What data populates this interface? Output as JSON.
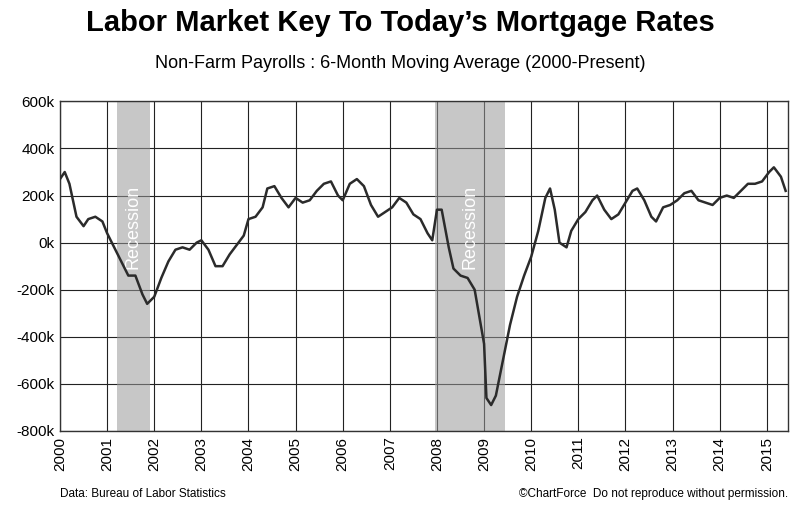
{
  "chart_data": {
    "type": "line",
    "title": "Labor Market Key To Today’s Mortgage Rates",
    "subtitle": "Non-Farm Payrolls : 6-Month Moving Average (2000-Present)",
    "source": "Data: Bureau of Labor Statistics",
    "credit": "©ChartForce  Do not reproduce without permission.",
    "x": [
      2000.0,
      2000.1,
      2000.2,
      2000.35,
      2000.5,
      2000.6,
      2000.75,
      2000.9,
      2001.0,
      2001.15,
      2001.3,
      2001.45,
      2001.6,
      2001.75,
      2001.85,
      2002.0,
      2002.15,
      2002.3,
      2002.45,
      2002.6,
      2002.75,
      2002.9,
      2003.0,
      2003.15,
      2003.3,
      2003.45,
      2003.6,
      2003.75,
      2003.9,
      2004.0,
      2004.15,
      2004.3,
      2004.4,
      2004.55,
      2004.7,
      2004.85,
      2005.0,
      2005.15,
      2005.3,
      2005.45,
      2005.6,
      2005.75,
      2005.9,
      2006.0,
      2006.15,
      2006.3,
      2006.45,
      2006.6,
      2006.75,
      2006.9,
      2007.05,
      2007.2,
      2007.35,
      2007.5,
      2007.65,
      2007.8,
      2007.9,
      2008.0,
      2008.1,
      2008.25,
      2008.35,
      2008.5,
      2008.65,
      2008.8,
      2009.0,
      2009.05,
      2009.15,
      2009.25,
      2009.4,
      2009.55,
      2009.7,
      2009.85,
      2010.0,
      2010.15,
      2010.3,
      2010.4,
      2010.5,
      2010.6,
      2010.75,
      2010.85,
      2011.0,
      2011.15,
      2011.3,
      2011.4,
      2011.55,
      2011.7,
      2011.85,
      2012.0,
      2012.15,
      2012.25,
      2012.4,
      2012.55,
      2012.65,
      2012.8,
      2012.95,
      2013.1,
      2013.25,
      2013.4,
      2013.55,
      2013.7,
      2013.85,
      2014.0,
      2014.15,
      2014.3,
      2014.45,
      2014.6,
      2014.75,
      2014.9,
      2015.05,
      2015.15,
      2015.3,
      2015.4
    ],
    "values": [
      270000,
      300000,
      250000,
      110000,
      70000,
      100000,
      110000,
      90000,
      40000,
      -20000,
      -80000,
      -140000,
      -140000,
      -220000,
      -260000,
      -230000,
      -150000,
      -80000,
      -30000,
      -20000,
      -30000,
      0,
      10000,
      -30000,
      -100000,
      -100000,
      -50000,
      -10000,
      30000,
      100000,
      110000,
      150000,
      230000,
      240000,
      190000,
      150000,
      190000,
      170000,
      180000,
      220000,
      250000,
      260000,
      200000,
      180000,
      250000,
      270000,
      240000,
      160000,
      110000,
      130000,
      150000,
      190000,
      170000,
      120000,
      100000,
      40000,
      10000,
      140000,
      140000,
      -20000,
      -110000,
      -140000,
      -150000,
      -200000,
      -430000,
      -660000,
      -690000,
      -650000,
      -500000,
      -350000,
      -230000,
      -140000,
      -60000,
      50000,
      190000,
      230000,
      140000,
      0,
      -20000,
      50000,
      100000,
      130000,
      180000,
      200000,
      140000,
      100000,
      120000,
      170000,
      220000,
      230000,
      180000,
      110000,
      90000,
      150000,
      160000,
      180000,
      210000,
      220000,
      180000,
      170000,
      160000,
      190000,
      200000,
      190000,
      220000,
      250000,
      250000,
      260000,
      300000,
      320000,
      280000,
      220000
    ],
    "color": "#2b2b2b",
    "line_style": "solid",
    "recessions": [
      {
        "start": 2001.2,
        "end": 2001.9,
        "label": "Recession"
      },
      {
        "start": 2007.95,
        "end": 2009.45,
        "label": "Recession"
      }
    ],
    "xlim": [
      2000,
      2015.45
    ],
    "xticks": [
      2000,
      2001,
      2002,
      2003,
      2004,
      2005,
      2006,
      2007,
      2008,
      2009,
      2010,
      2011,
      2012,
      2013,
      2014,
      2015
    ],
    "ylim": [
      -800000,
      600000
    ],
    "yticks": [
      {
        "value": -800000,
        "label": "-800k"
      },
      {
        "value": -600000,
        "label": "-600k"
      },
      {
        "value": -400000,
        "label": "-400k"
      },
      {
        "value": -200000,
        "label": "-200k"
      },
      {
        "value": 0,
        "label": "0k"
      },
      {
        "value": 200000,
        "label": "200k"
      },
      {
        "value": 400000,
        "label": "400k"
      },
      {
        "value": 600000,
        "label": "600k"
      }
    ],
    "grid": true
  }
}
